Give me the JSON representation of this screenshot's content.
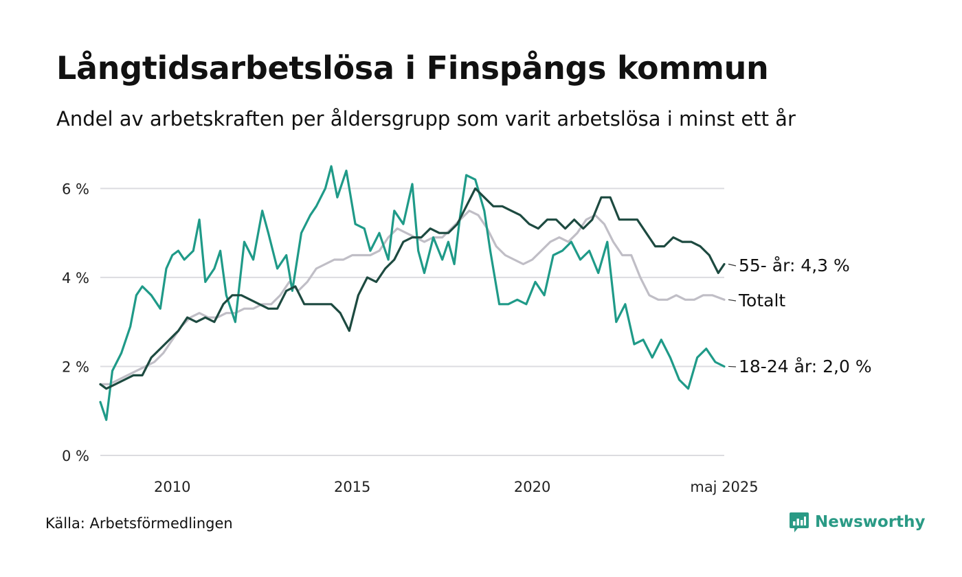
{
  "title": "Långtidsarbetslösa i Finspångs kommun",
  "subtitle": "Andel av arbetskraften per åldersgrupp som varit arbetslösa i minst ett år",
  "source": "Källa: Arbetsförmedlingen",
  "brand": {
    "name": "Newsworthy",
    "icon": "newsworthy-logo-icon",
    "color": "#2a9a85"
  },
  "chart_data": {
    "type": "line",
    "title": "Långtidsarbetslösa i Finspångs kommun",
    "xlabel": "",
    "ylabel": "",
    "x_range": [
      "2008-01",
      "2025-05"
    ],
    "ylim": [
      0,
      6.5
    ],
    "yticks": [
      {
        "value": 0,
        "label": "0 %"
      },
      {
        "value": 2,
        "label": "2 %"
      },
      {
        "value": 4,
        "label": "4 %"
      },
      {
        "value": 6,
        "label": "6 %"
      }
    ],
    "xticks": [
      {
        "value": "2010-01",
        "label": "2010"
      },
      {
        "value": "2015-01",
        "label": "2015"
      },
      {
        "value": "2020-01",
        "label": "2020"
      },
      {
        "value": "2025-05",
        "label": "maj 2025"
      }
    ],
    "grid": "horizontal",
    "series": [
      {
        "name": "Totalt",
        "end_label": "Totalt",
        "color": "#c0bec6",
        "points": [
          [
            "2008-01",
            1.6
          ],
          [
            "2008-04",
            1.6
          ],
          [
            "2008-07",
            1.7
          ],
          [
            "2008-10",
            1.8
          ],
          [
            "2009-01",
            1.9
          ],
          [
            "2009-04",
            2.0
          ],
          [
            "2009-07",
            2.1
          ],
          [
            "2009-10",
            2.3
          ],
          [
            "2010-01",
            2.6
          ],
          [
            "2010-04",
            2.9
          ],
          [
            "2010-07",
            3.1
          ],
          [
            "2010-10",
            3.2
          ],
          [
            "2011-01",
            3.1
          ],
          [
            "2011-04",
            3.1
          ],
          [
            "2011-07",
            3.2
          ],
          [
            "2011-10",
            3.2
          ],
          [
            "2012-01",
            3.3
          ],
          [
            "2012-04",
            3.3
          ],
          [
            "2012-07",
            3.4
          ],
          [
            "2012-10",
            3.4
          ],
          [
            "2013-01",
            3.6
          ],
          [
            "2013-04",
            3.9
          ],
          [
            "2013-07",
            3.7
          ],
          [
            "2013-10",
            3.9
          ],
          [
            "2014-01",
            4.2
          ],
          [
            "2014-04",
            4.3
          ],
          [
            "2014-07",
            4.4
          ],
          [
            "2014-10",
            4.4
          ],
          [
            "2015-01",
            4.5
          ],
          [
            "2015-04",
            4.5
          ],
          [
            "2015-07",
            4.5
          ],
          [
            "2015-10",
            4.6
          ],
          [
            "2016-01",
            4.9
          ],
          [
            "2016-04",
            5.1
          ],
          [
            "2016-07",
            5.0
          ],
          [
            "2016-10",
            4.9
          ],
          [
            "2017-01",
            4.8
          ],
          [
            "2017-04",
            4.9
          ],
          [
            "2017-07",
            4.9
          ],
          [
            "2017-10",
            5.1
          ],
          [
            "2018-01",
            5.3
          ],
          [
            "2018-04",
            5.5
          ],
          [
            "2018-07",
            5.4
          ],
          [
            "2018-10",
            5.1
          ],
          [
            "2019-01",
            4.7
          ],
          [
            "2019-04",
            4.5
          ],
          [
            "2019-07",
            4.4
          ],
          [
            "2019-10",
            4.3
          ],
          [
            "2020-01",
            4.4
          ],
          [
            "2020-04",
            4.6
          ],
          [
            "2020-07",
            4.8
          ],
          [
            "2020-10",
            4.9
          ],
          [
            "2021-01",
            4.8
          ],
          [
            "2021-04",
            5.0
          ],
          [
            "2021-07",
            5.3
          ],
          [
            "2021-10",
            5.4
          ],
          [
            "2022-01",
            5.2
          ],
          [
            "2022-04",
            4.8
          ],
          [
            "2022-07",
            4.5
          ],
          [
            "2022-10",
            4.5
          ],
          [
            "2023-01",
            4.0
          ],
          [
            "2023-04",
            3.6
          ],
          [
            "2023-07",
            3.5
          ],
          [
            "2023-10",
            3.5
          ],
          [
            "2024-01",
            3.6
          ],
          [
            "2024-04",
            3.5
          ],
          [
            "2024-07",
            3.5
          ],
          [
            "2024-10",
            3.6
          ],
          [
            "2025-01",
            3.6
          ],
          [
            "2025-05",
            3.5
          ]
        ]
      },
      {
        "name": "18-24 år",
        "end_label": "18-24 år: 2,0 %",
        "color": "#1f9a88",
        "points": [
          [
            "2008-01",
            1.2
          ],
          [
            "2008-03",
            0.8
          ],
          [
            "2008-05",
            1.9
          ],
          [
            "2008-08",
            2.3
          ],
          [
            "2008-11",
            2.9
          ],
          [
            "2009-01",
            3.6
          ],
          [
            "2009-03",
            3.8
          ],
          [
            "2009-06",
            3.6
          ],
          [
            "2009-09",
            3.3
          ],
          [
            "2009-11",
            4.2
          ],
          [
            "2010-01",
            4.5
          ],
          [
            "2010-03",
            4.6
          ],
          [
            "2010-05",
            4.4
          ],
          [
            "2010-08",
            4.6
          ],
          [
            "2010-10",
            5.3
          ],
          [
            "2010-12",
            3.9
          ],
          [
            "2011-03",
            4.2
          ],
          [
            "2011-05",
            4.6
          ],
          [
            "2011-07",
            3.6
          ],
          [
            "2011-10",
            3.0
          ],
          [
            "2012-01",
            4.8
          ],
          [
            "2012-04",
            4.4
          ],
          [
            "2012-07",
            5.5
          ],
          [
            "2012-09",
            5.0
          ],
          [
            "2012-12",
            4.2
          ],
          [
            "2013-03",
            4.5
          ],
          [
            "2013-05",
            3.7
          ],
          [
            "2013-08",
            5.0
          ],
          [
            "2013-11",
            5.4
          ],
          [
            "2014-01",
            5.6
          ],
          [
            "2014-04",
            6.0
          ],
          [
            "2014-06",
            6.5
          ],
          [
            "2014-08",
            5.8
          ],
          [
            "2014-11",
            6.4
          ],
          [
            "2015-02",
            5.2
          ],
          [
            "2015-05",
            5.1
          ],
          [
            "2015-07",
            4.6
          ],
          [
            "2015-10",
            5.0
          ],
          [
            "2016-01",
            4.4
          ],
          [
            "2016-03",
            5.5
          ],
          [
            "2016-06",
            5.2
          ],
          [
            "2016-09",
            6.1
          ],
          [
            "2016-11",
            4.6
          ],
          [
            "2017-01",
            4.1
          ],
          [
            "2017-04",
            4.9
          ],
          [
            "2017-07",
            4.4
          ],
          [
            "2017-09",
            4.8
          ],
          [
            "2017-11",
            4.3
          ],
          [
            "2018-01",
            5.4
          ],
          [
            "2018-03",
            6.3
          ],
          [
            "2018-06",
            6.2
          ],
          [
            "2018-09",
            5.5
          ],
          [
            "2018-11",
            4.6
          ],
          [
            "2019-02",
            3.4
          ],
          [
            "2019-05",
            3.4
          ],
          [
            "2019-08",
            3.5
          ],
          [
            "2019-11",
            3.4
          ],
          [
            "2020-02",
            3.9
          ],
          [
            "2020-05",
            3.6
          ],
          [
            "2020-08",
            4.5
          ],
          [
            "2020-11",
            4.6
          ],
          [
            "2021-02",
            4.8
          ],
          [
            "2021-05",
            4.4
          ],
          [
            "2021-08",
            4.6
          ],
          [
            "2021-11",
            4.1
          ],
          [
            "2022-02",
            4.8
          ],
          [
            "2022-05",
            3.0
          ],
          [
            "2022-08",
            3.4
          ],
          [
            "2022-11",
            2.5
          ],
          [
            "2023-02",
            2.6
          ],
          [
            "2023-05",
            2.2
          ],
          [
            "2023-08",
            2.6
          ],
          [
            "2023-11",
            2.2
          ],
          [
            "2024-02",
            1.7
          ],
          [
            "2024-05",
            1.5
          ],
          [
            "2024-08",
            2.2
          ],
          [
            "2024-11",
            2.4
          ],
          [
            "2025-02",
            2.1
          ],
          [
            "2025-05",
            2.0
          ]
        ]
      },
      {
        "name": "55- år",
        "end_label": "55- år: 4,3 %",
        "color": "#1d4a40",
        "points": [
          [
            "2008-01",
            1.6
          ],
          [
            "2008-03",
            1.5
          ],
          [
            "2008-06",
            1.6
          ],
          [
            "2008-09",
            1.7
          ],
          [
            "2008-12",
            1.8
          ],
          [
            "2009-03",
            1.8
          ],
          [
            "2009-06",
            2.2
          ],
          [
            "2009-09",
            2.4
          ],
          [
            "2009-12",
            2.6
          ],
          [
            "2010-03",
            2.8
          ],
          [
            "2010-06",
            3.1
          ],
          [
            "2010-09",
            3.0
          ],
          [
            "2010-12",
            3.1
          ],
          [
            "2011-03",
            3.0
          ],
          [
            "2011-06",
            3.4
          ],
          [
            "2011-09",
            3.6
          ],
          [
            "2011-12",
            3.6
          ],
          [
            "2012-03",
            3.5
          ],
          [
            "2012-06",
            3.4
          ],
          [
            "2012-09",
            3.3
          ],
          [
            "2012-12",
            3.3
          ],
          [
            "2013-03",
            3.7
          ],
          [
            "2013-06",
            3.8
          ],
          [
            "2013-09",
            3.4
          ],
          [
            "2013-12",
            3.4
          ],
          [
            "2014-03",
            3.4
          ],
          [
            "2014-06",
            3.4
          ],
          [
            "2014-09",
            3.2
          ],
          [
            "2014-12",
            2.8
          ],
          [
            "2015-03",
            3.6
          ],
          [
            "2015-06",
            4.0
          ],
          [
            "2015-09",
            3.9
          ],
          [
            "2015-12",
            4.2
          ],
          [
            "2016-03",
            4.4
          ],
          [
            "2016-06",
            4.8
          ],
          [
            "2016-09",
            4.9
          ],
          [
            "2016-12",
            4.9
          ],
          [
            "2017-03",
            5.1
          ],
          [
            "2017-06",
            5.0
          ],
          [
            "2017-09",
            5.0
          ],
          [
            "2017-12",
            5.2
          ],
          [
            "2018-03",
            5.6
          ],
          [
            "2018-06",
            6.0
          ],
          [
            "2018-09",
            5.8
          ],
          [
            "2018-12",
            5.6
          ],
          [
            "2019-03",
            5.6
          ],
          [
            "2019-06",
            5.5
          ],
          [
            "2019-09",
            5.4
          ],
          [
            "2019-12",
            5.2
          ],
          [
            "2020-03",
            5.1
          ],
          [
            "2020-06",
            5.3
          ],
          [
            "2020-09",
            5.3
          ],
          [
            "2020-12",
            5.1
          ],
          [
            "2021-03",
            5.3
          ],
          [
            "2021-06",
            5.1
          ],
          [
            "2021-09",
            5.3
          ],
          [
            "2021-12",
            5.8
          ],
          [
            "2022-03",
            5.8
          ],
          [
            "2022-06",
            5.3
          ],
          [
            "2022-09",
            5.3
          ],
          [
            "2022-12",
            5.3
          ],
          [
            "2023-03",
            5.0
          ],
          [
            "2023-06",
            4.7
          ],
          [
            "2023-09",
            4.7
          ],
          [
            "2023-12",
            4.9
          ],
          [
            "2024-03",
            4.8
          ],
          [
            "2024-06",
            4.8
          ],
          [
            "2024-09",
            4.7
          ],
          [
            "2024-12",
            4.5
          ],
          [
            "2025-03",
            4.1
          ],
          [
            "2025-05",
            4.3
          ]
        ]
      }
    ]
  }
}
